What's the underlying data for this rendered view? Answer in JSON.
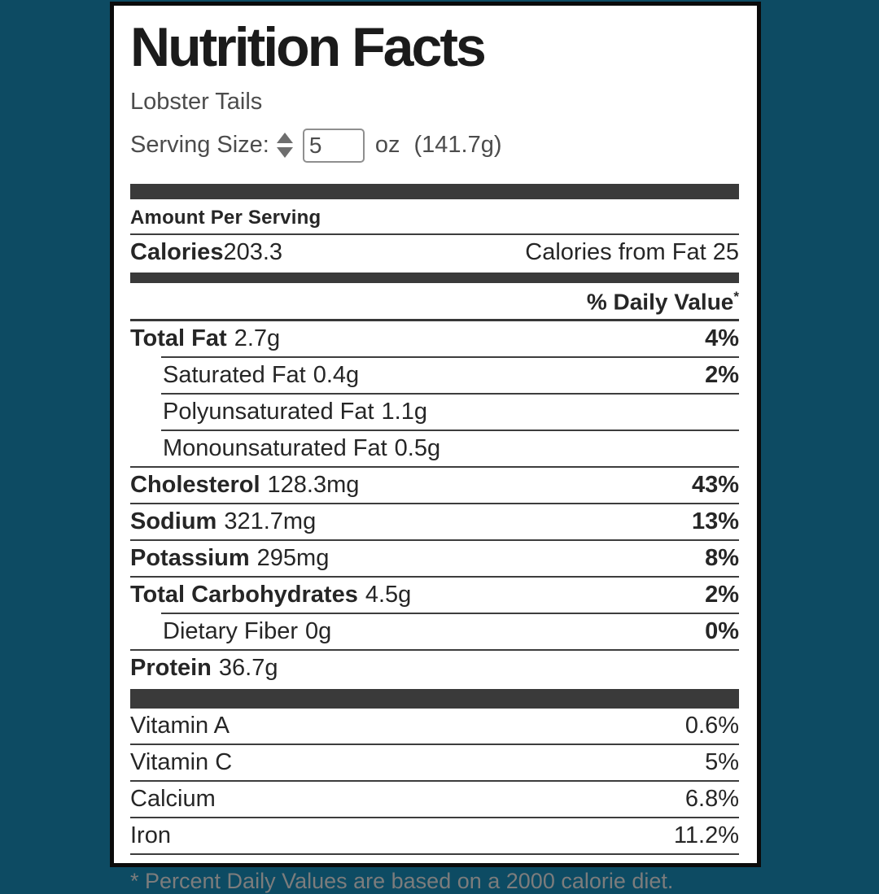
{
  "colors": {
    "background": "#0d4b63",
    "bar": "#3a3a3a",
    "text": "#262626",
    "muted_text": "#4c4c4c",
    "footnote_text": "#7c7c7c"
  },
  "label": {
    "title": "Nutrition Facts",
    "food_name": "Lobster Tails",
    "serving": {
      "label": "Serving Size:",
      "value": "5",
      "unit": "oz",
      "weight": "(141.7g)"
    },
    "amount_per_serving": "Amount Per Serving",
    "calories": {
      "label": "Calories",
      "value": "203.3",
      "from_fat_label": "Calories from Fat",
      "from_fat_value": "25"
    },
    "daily_value_header": "% Daily Value",
    "daily_value_mark": "*",
    "nutrients": [
      {
        "label": "Total Fat",
        "amount": "2.7g",
        "dv": "4%"
      },
      {
        "label": "Saturated Fat",
        "amount": "0.4g",
        "dv": "2%"
      },
      {
        "label": "Polyunsaturated Fat",
        "amount": "1.1g",
        "dv": ""
      },
      {
        "label": "Monounsaturated Fat",
        "amount": "0.5g",
        "dv": ""
      },
      {
        "label": "Cholesterol",
        "amount": "128.3mg",
        "dv": "43%"
      },
      {
        "label": "Sodium",
        "amount": "321.7mg",
        "dv": "13%"
      },
      {
        "label": "Potassium",
        "amount": "295mg",
        "dv": "8%"
      },
      {
        "label": "Total Carbohydrates",
        "amount": "4.5g",
        "dv": "2%"
      },
      {
        "label": "Dietary Fiber",
        "amount": "0g",
        "dv": "0%"
      },
      {
        "label": "Protein",
        "amount": "36.7g",
        "dv": ""
      }
    ],
    "vitamins": [
      {
        "label": "Vitamin A",
        "dv": "0.6%"
      },
      {
        "label": "Vitamin C",
        "dv": "5%"
      },
      {
        "label": "Calcium",
        "dv": "6.8%"
      },
      {
        "label": "Iron",
        "dv": "11.2%"
      }
    ],
    "footnote": "* Percent Daily Values are based on a 2000 calorie diet."
  }
}
